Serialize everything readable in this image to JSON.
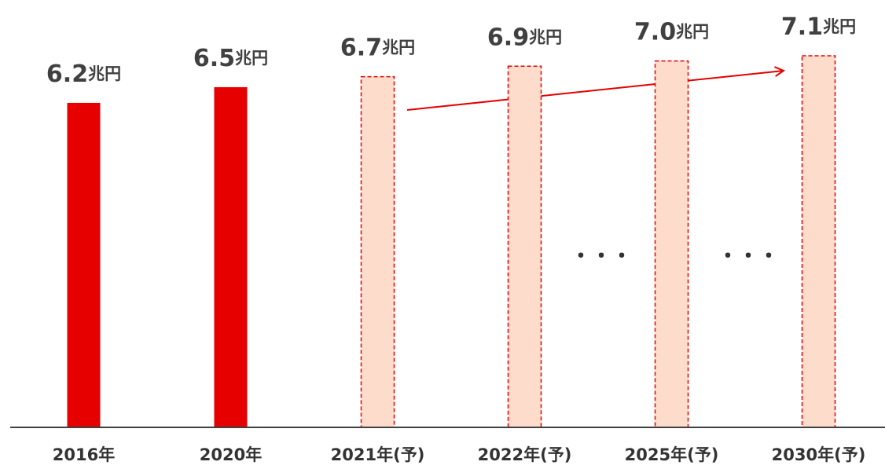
{
  "chart_data": {
    "type": "bar",
    "categories": [
      "2016年",
      "2020年",
      "2021年(予)",
      "2022年(予)",
      "2025年(予)",
      "2030年(予)"
    ],
    "values": [
      6.2,
      6.5,
      6.7,
      6.9,
      7.0,
      7.1
    ],
    "value_labels": [
      "6.2",
      "6.5",
      "6.7",
      "6.9",
      "7.0",
      "7.1"
    ],
    "value_unit": "兆円",
    "colors": [
      "#e60000",
      "#e60000",
      "#fddccc",
      "#fddccc",
      "#fddccc",
      "#fddccc"
    ],
    "dashed": [
      false,
      false,
      true,
      true,
      true,
      true
    ],
    "ylim": [
      0,
      8
    ],
    "annotations": [
      "・・・",
      "・・・"
    ]
  }
}
